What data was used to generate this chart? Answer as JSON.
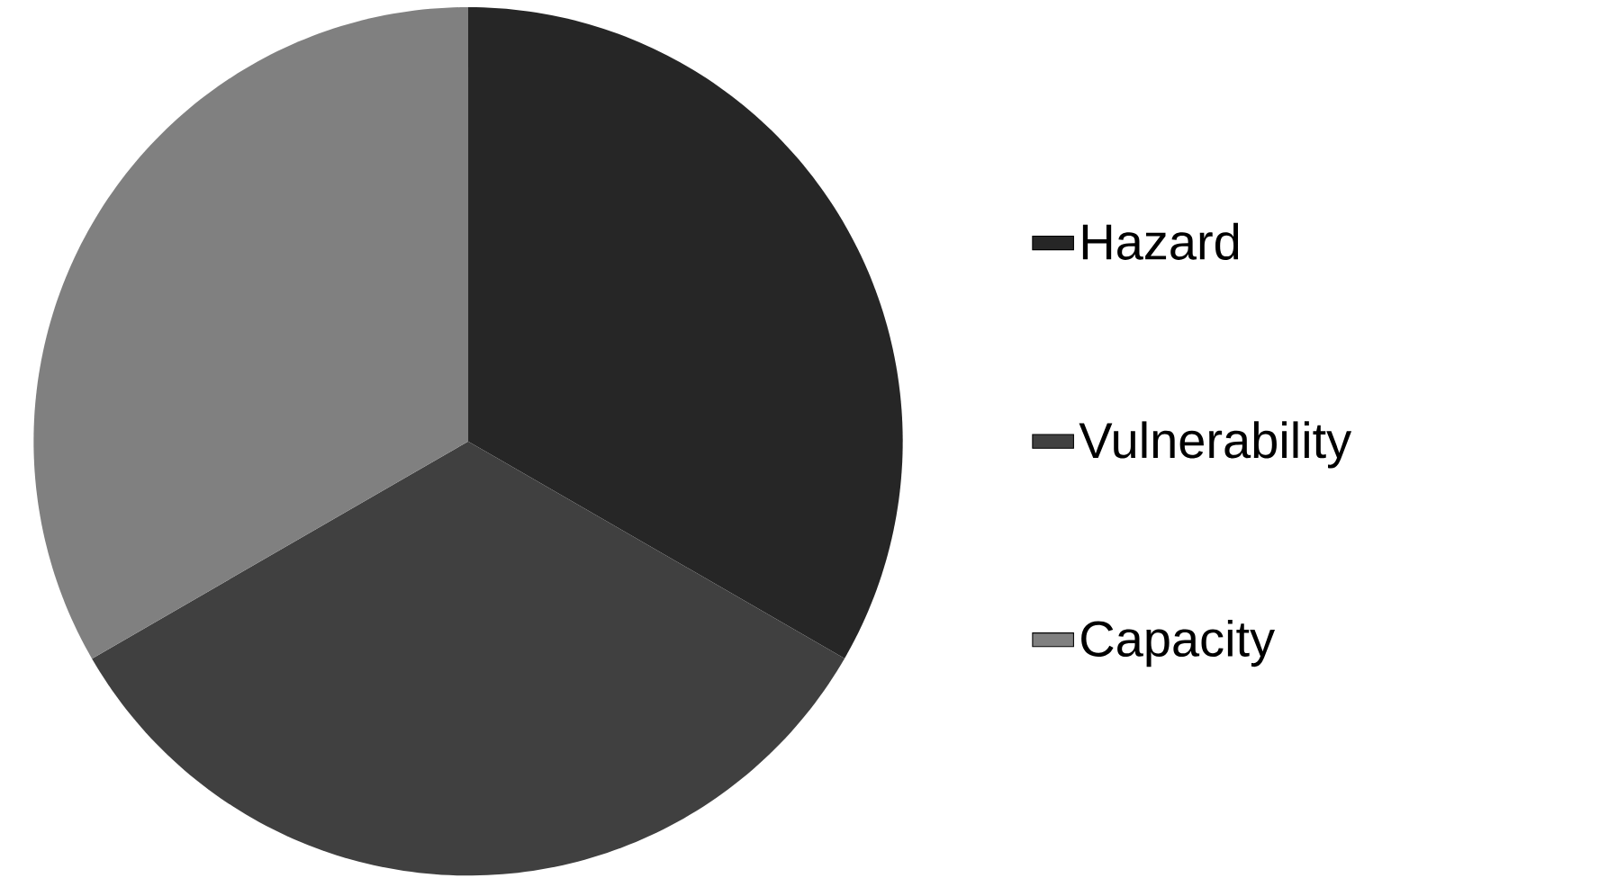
{
  "chart_data": {
    "type": "pie",
    "categories": [
      "Hazard",
      "Vulnerability",
      "Capacity"
    ],
    "values": [
      33.33,
      33.33,
      33.34
    ],
    "colors": [
      "#262626",
      "#404040",
      "#808080"
    ],
    "legend": "right"
  }
}
